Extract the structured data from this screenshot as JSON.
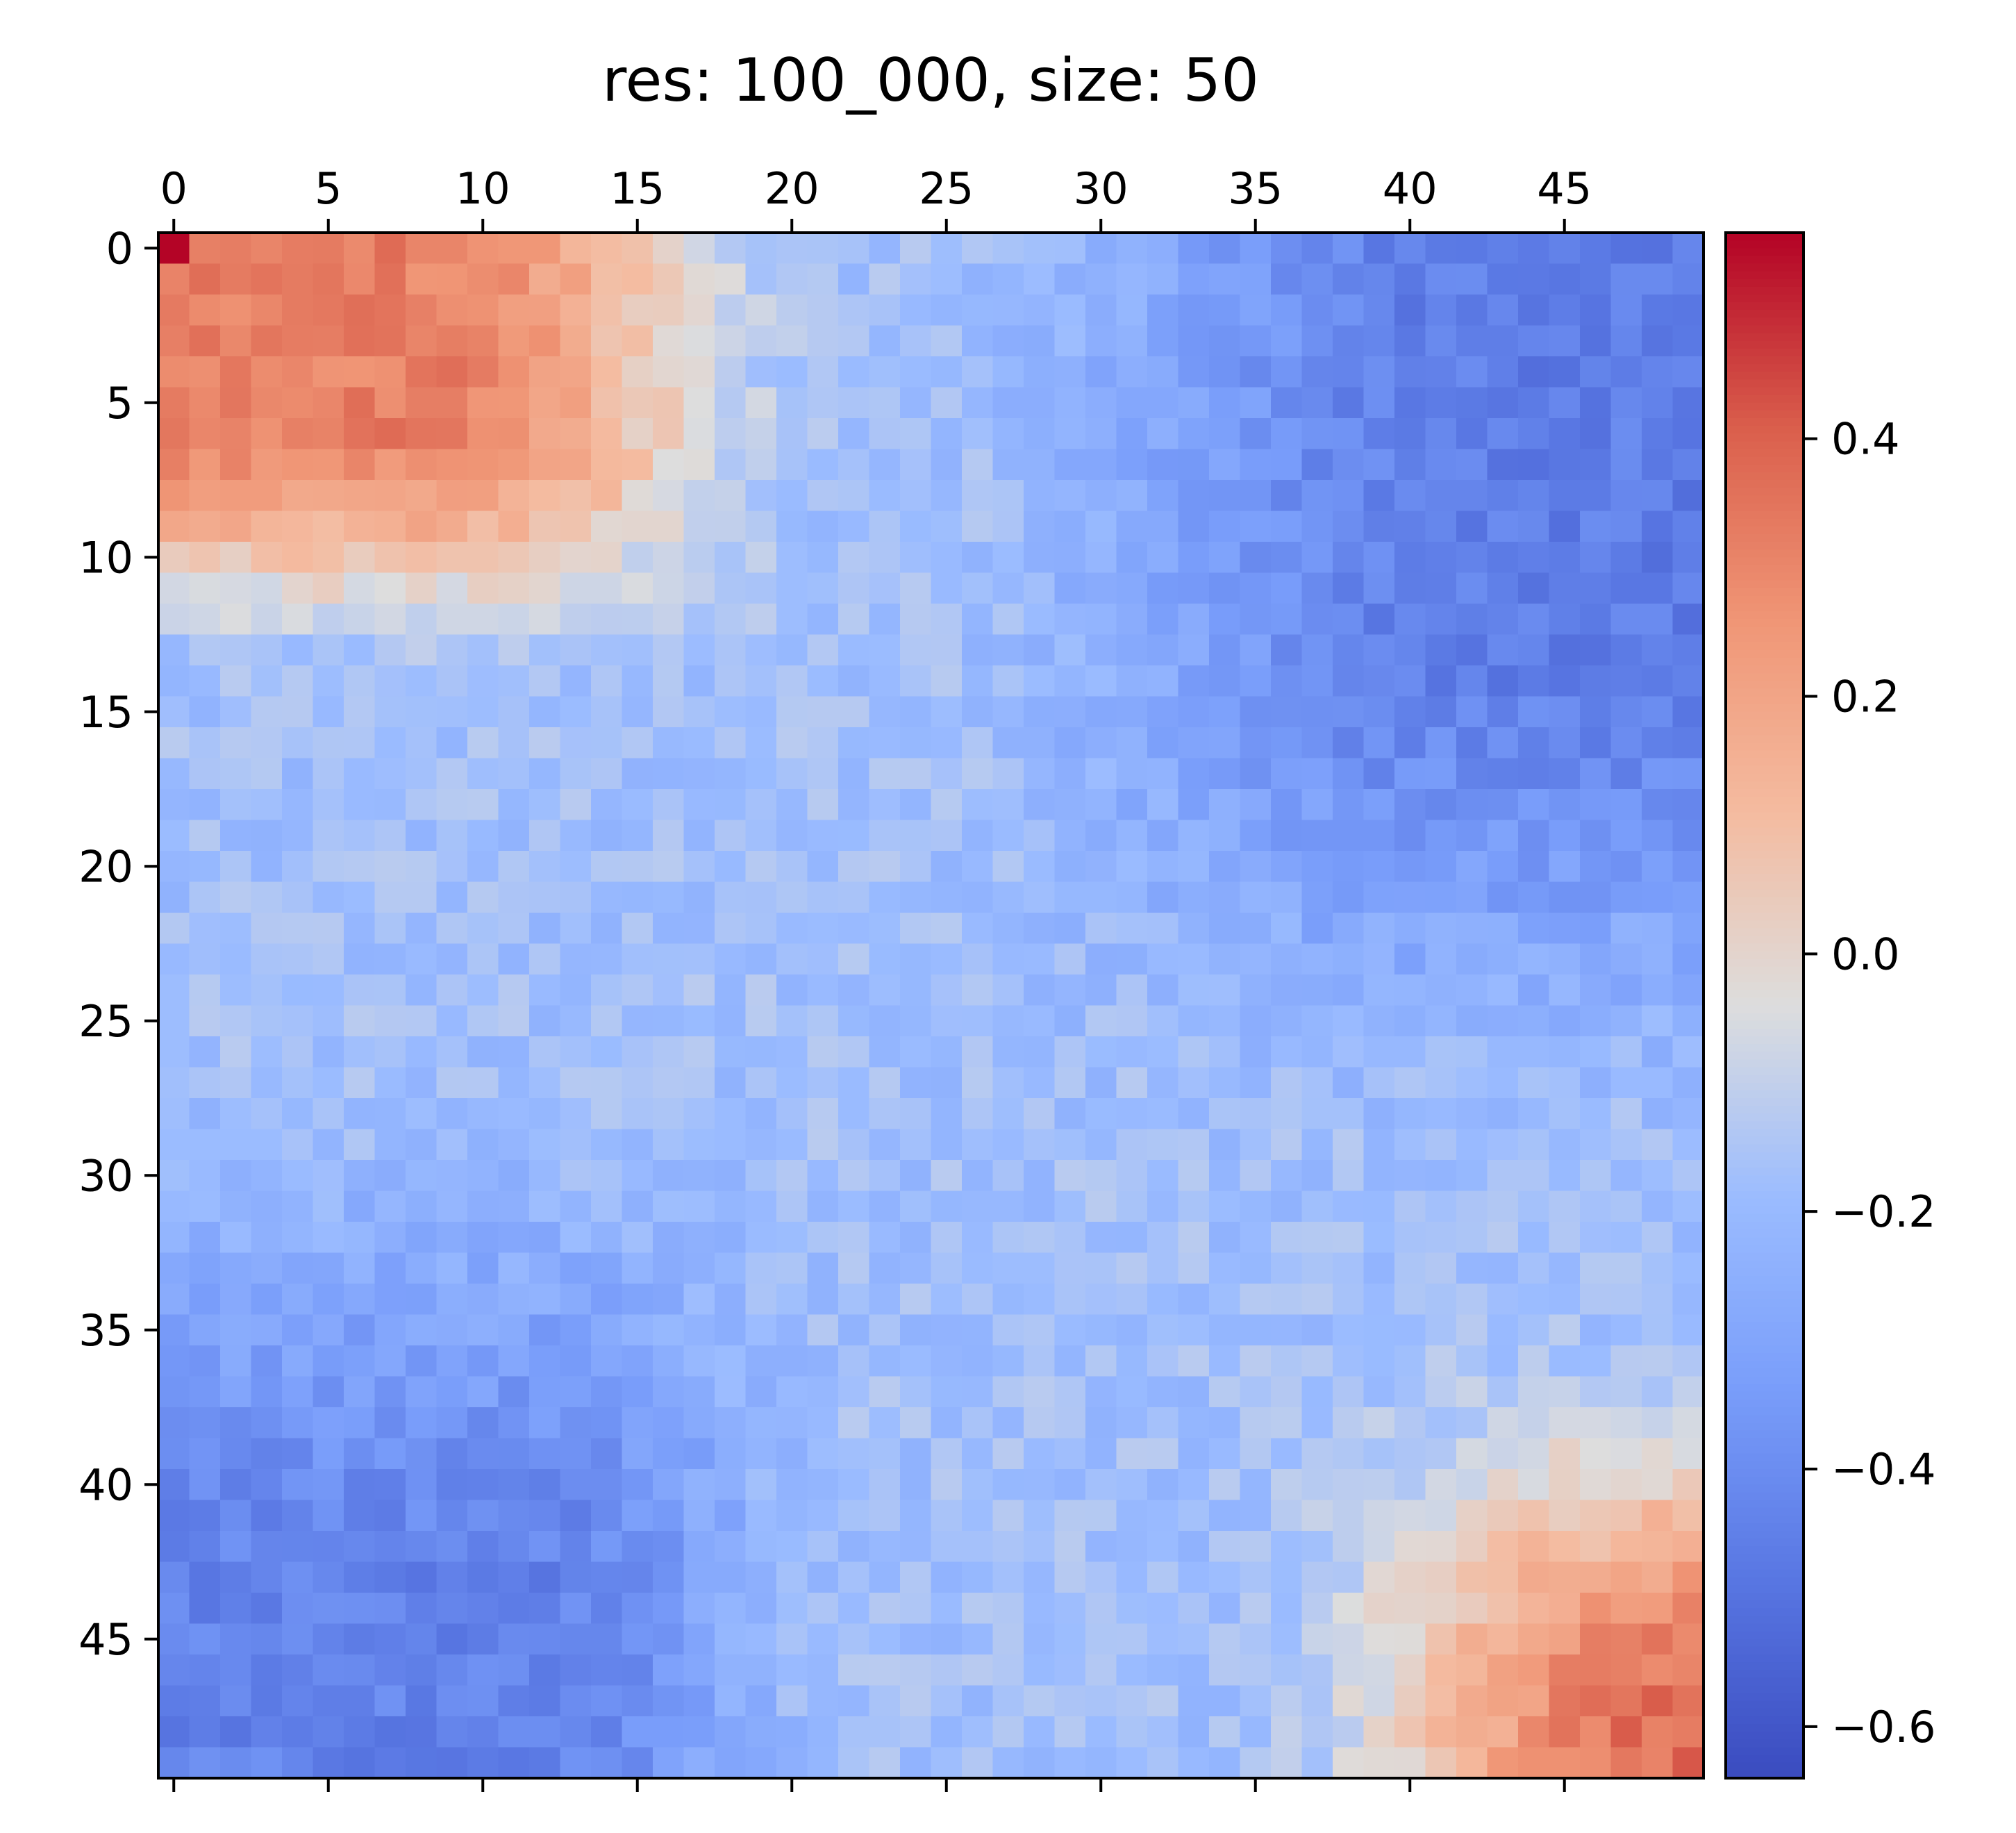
{
  "chart_data": {
    "type": "heatmap",
    "title": "res: 100_000, size: 50",
    "xlabel": "",
    "ylabel": "",
    "rows": 50,
    "cols": 50,
    "xlim": [
      -0.5,
      49.5
    ],
    "ylim": [
      49.5,
      -0.5
    ],
    "x_ticks": [
      0,
      5,
      10,
      15,
      20,
      25,
      30,
      35,
      40,
      45
    ],
    "x_tick_labels": [
      "0",
      "5",
      "10",
      "15",
      "20",
      "25",
      "30",
      "35",
      "40",
      "45"
    ],
    "x_tick_position": "top",
    "y_ticks": [
      0,
      5,
      10,
      15,
      20,
      25,
      30,
      35,
      40,
      45
    ],
    "y_tick_labels": [
      "0",
      "5",
      "10",
      "15",
      "20",
      "25",
      "30",
      "35",
      "40",
      "45"
    ],
    "colormap": "coolwarm",
    "colorbar": {
      "position": "right",
      "vmin": -0.64,
      "vmax": 0.56,
      "ticks": [
        0.4,
        0.2,
        0.0,
        -0.2,
        -0.4,
        -0.6
      ],
      "tick_labels": [
        "0.4",
        "0.2",
        "0.0",
        "−0.2",
        "−0.4",
        "−0.6"
      ]
    },
    "grid": false,
    "description": "Correlation-like matrix: strong positive block at top-left (rows 0-8, cols 0-12), strong positive block at bottom-right (rows 38-49, cols 38-49), strong negative top-right (rows 0-20, cols 30-49) and bottom-left (rows 28-49, cols 0-15), mild negative elsewhere."
  }
}
